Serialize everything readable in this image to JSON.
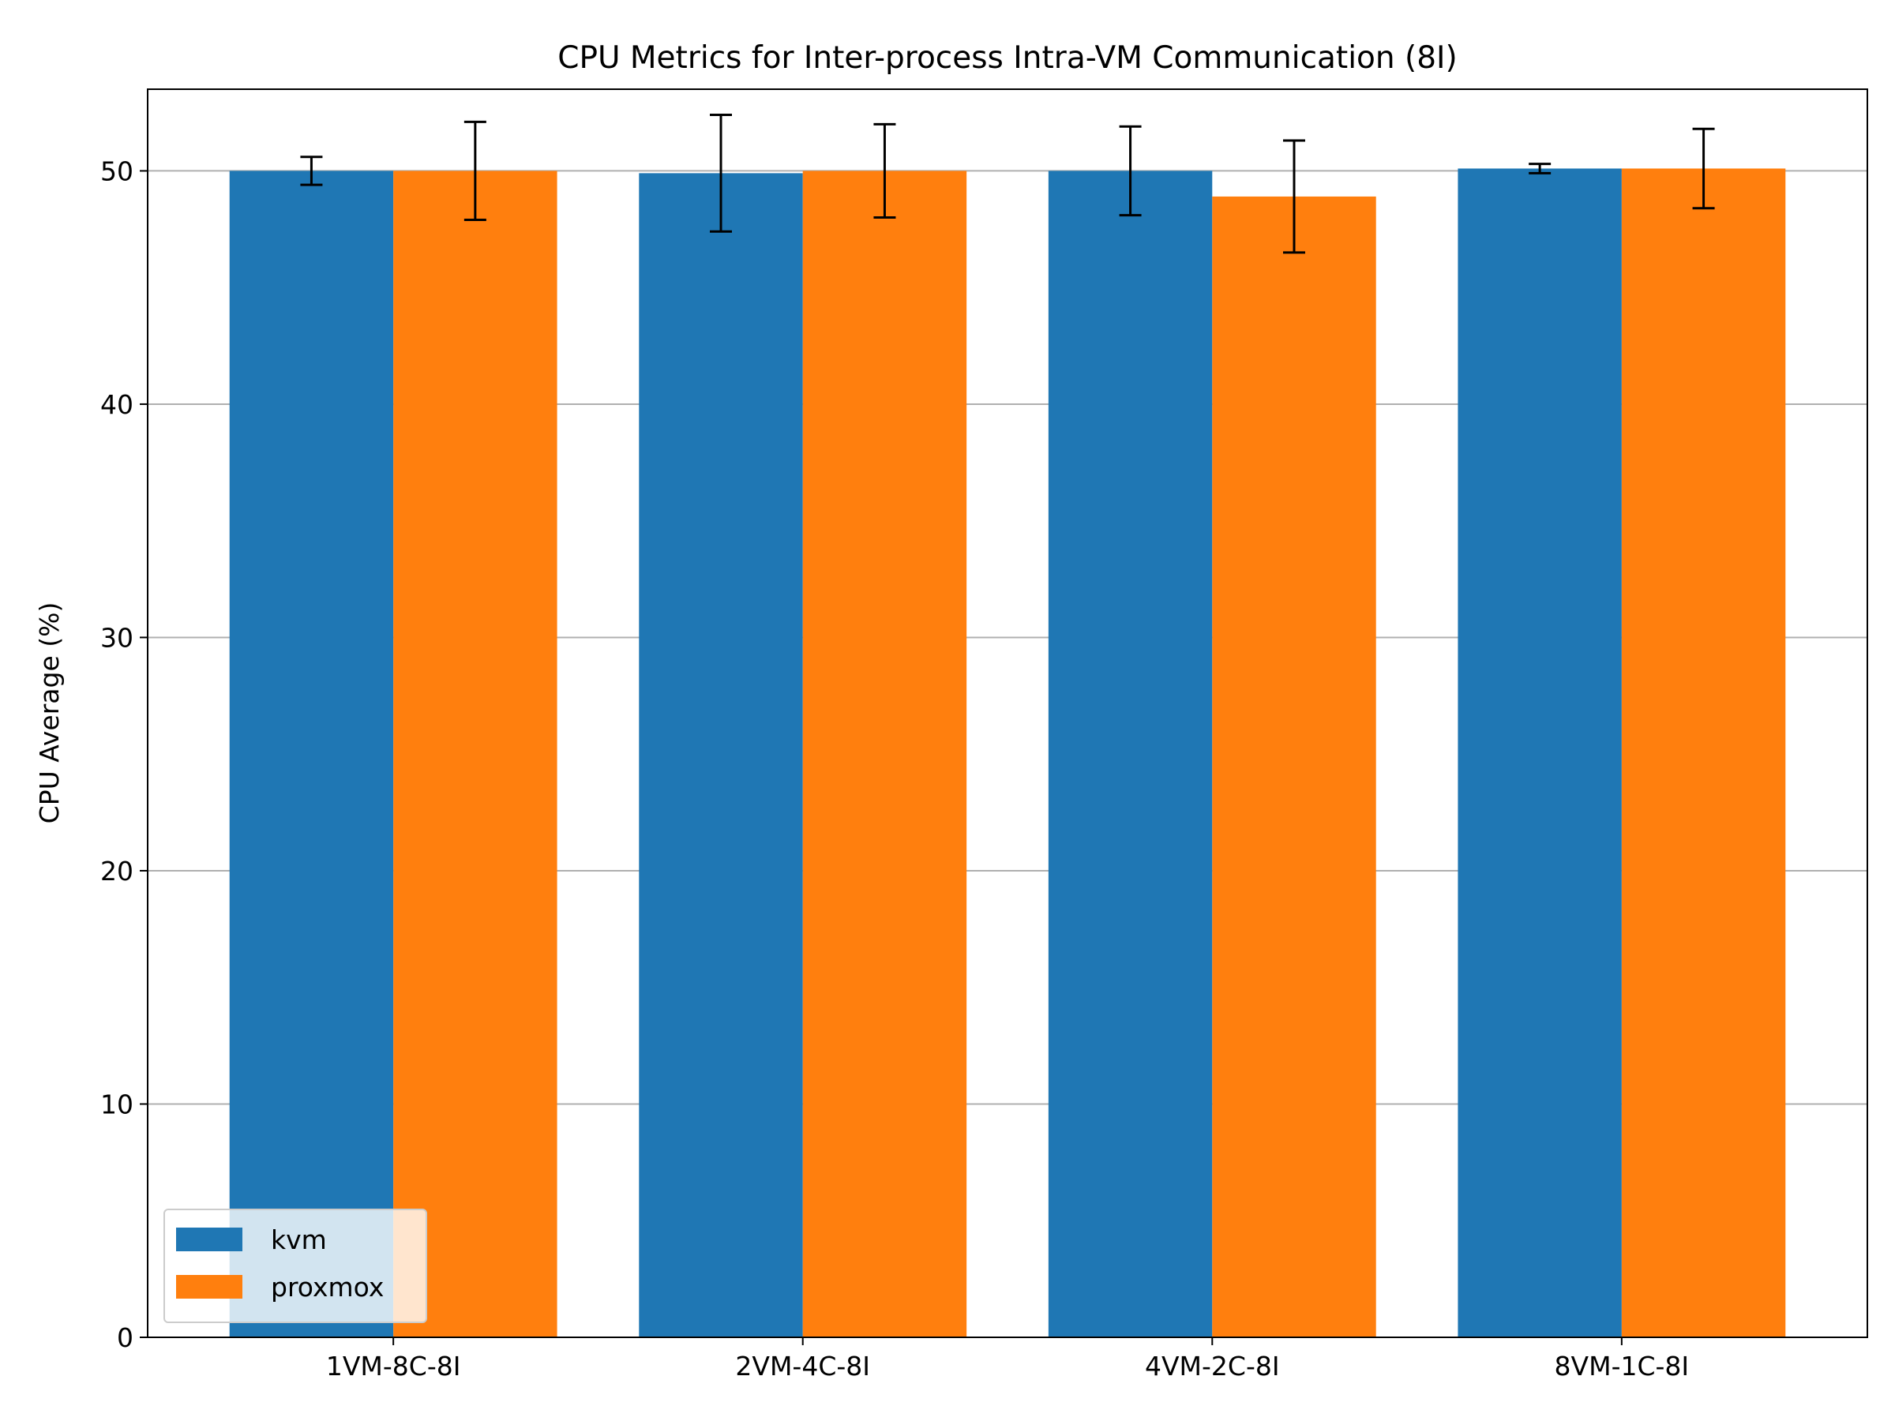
{
  "chart_data": {
    "type": "bar",
    "title": "CPU Metrics for Inter-process Intra-VM Communication (8I)",
    "xlabel": "",
    "ylabel": "CPU Average (%)",
    "categories": [
      "1VM-8C-8I",
      "2VM-4C-8I",
      "4VM-2C-8I",
      "8VM-1C-8I"
    ],
    "series": [
      {
        "name": "kvm",
        "color": "#1f77b4",
        "values": [
          50.0,
          49.9,
          50.0,
          50.1
        ],
        "errors": [
          0.6,
          2.5,
          1.9,
          0.2
        ]
      },
      {
        "name": "proxmox",
        "color": "#ff7f0e",
        "values": [
          50.0,
          50.0,
          48.9,
          50.1
        ],
        "errors": [
          2.1,
          2.0,
          2.4,
          1.7
        ]
      }
    ],
    "ylim": [
      0,
      53.5
    ],
    "yticks": [
      0,
      10,
      20,
      30,
      40,
      50
    ],
    "grid": "y",
    "legend": "lower-left"
  }
}
